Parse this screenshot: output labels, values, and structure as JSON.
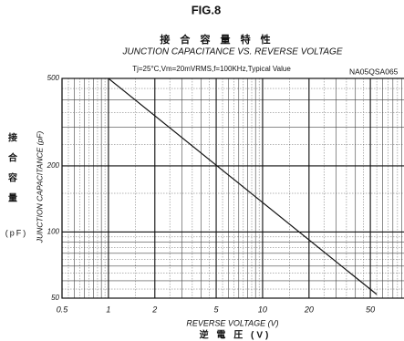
{
  "chart_data": {
    "type": "line",
    "figure": "FIG.8",
    "title_local": "接 合 容 量 特 性",
    "title": "JUNCTION CAPACITANCE VS. REVERSE VOLTAGE",
    "conditions": "Tj=25°C,Vm=20mVRMS,f=100KHz,Typical Value",
    "model": "NA05QSA065",
    "xlabel": "REVERSE VOLTAGE (V)",
    "xlabel_local": "逆 電 圧 (V)",
    "ylabel": "JUNCTION CAPACITANCE (pF)",
    "ylabel_local": [
      "接",
      "合",
      "容",
      "量"
    ],
    "ylabel_unit": "(pF)",
    "x_log": true,
    "y_log": true,
    "grid": true,
    "minor_grid": true,
    "xlim": [
      0.5,
      100
    ],
    "ylim": [
      50,
      500
    ],
    "xticks": [
      0.5,
      1,
      2,
      5,
      10,
      20,
      50,
      100
    ],
    "yticks": [
      50,
      100,
      200,
      500
    ],
    "series": [
      {
        "name": "NA05QSA065",
        "color": "#111111",
        "x": [
          1,
          55
        ],
        "values": [
          500,
          52
        ]
      }
    ]
  }
}
